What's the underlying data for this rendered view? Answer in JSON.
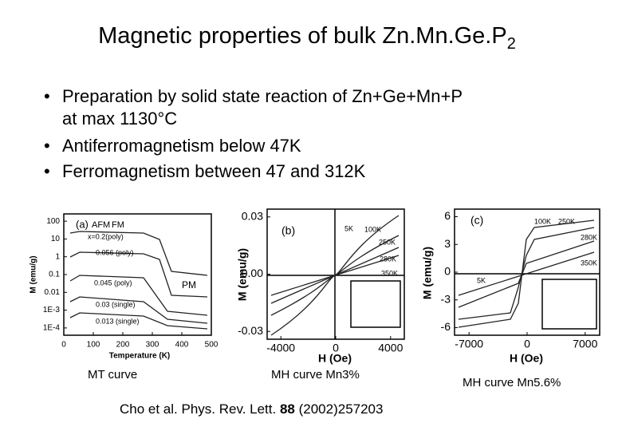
{
  "title": {
    "text": "Magnetic properties of bulk Zn.Mn.Ge.P",
    "subscript": "2"
  },
  "bullets": [
    "Preparation by solid state reaction of Zn+Ge+Mn+P",
    "at max 1130°C",
    "Antiferromagnetism below 47K",
    "Ferromagnetism between 47 and 312K"
  ],
  "figures": [
    {
      "xlabel": "Temperature (K)",
      "ylabel": "M (emu/g)",
      "xticks": [
        "0",
        "100",
        "200",
        "300",
        "400",
        "500"
      ],
      "yticks": [
        "100",
        "10",
        "1",
        "0.1",
        "0.01",
        "1E-3",
        "1E-4"
      ],
      "labels": [
        "(a)",
        "AFM",
        "FM",
        "x=0.2(poly)",
        "0.056 (poly)",
        "0.045 (poly)",
        "0.03 (single)",
        "0.013 (single)",
        "PM"
      ],
      "caption": "MT curve"
    },
    {
      "xlabel": "H (Oe)",
      "ylabel": "M (emu/g)",
      "xticks": [
        "-4000",
        "0",
        "4000"
      ],
      "yticks": [
        "0.03",
        "0.00",
        "-0.03"
      ],
      "labels": [
        "(b)",
        "5K",
        "100K",
        "250K",
        "280K",
        "350K"
      ],
      "caption": "MH curve  Mn3%"
    },
    {
      "xlabel": "H (Oe)",
      "ylabel": "M (emu/g)",
      "xticks": [
        "-7000",
        "0",
        "7000"
      ],
      "yticks": [
        "6",
        "3",
        "0",
        "-3",
        "-6"
      ],
      "labels": [
        "(c)",
        "100K",
        "250K",
        "280K",
        "350K",
        "5K"
      ],
      "caption": "MH curve Mn5.6%"
    }
  ],
  "citation": {
    "prefix": "Cho et al. Phys. Rev. Lett. ",
    "volume": "88",
    "suffix": " (2002)257203"
  }
}
